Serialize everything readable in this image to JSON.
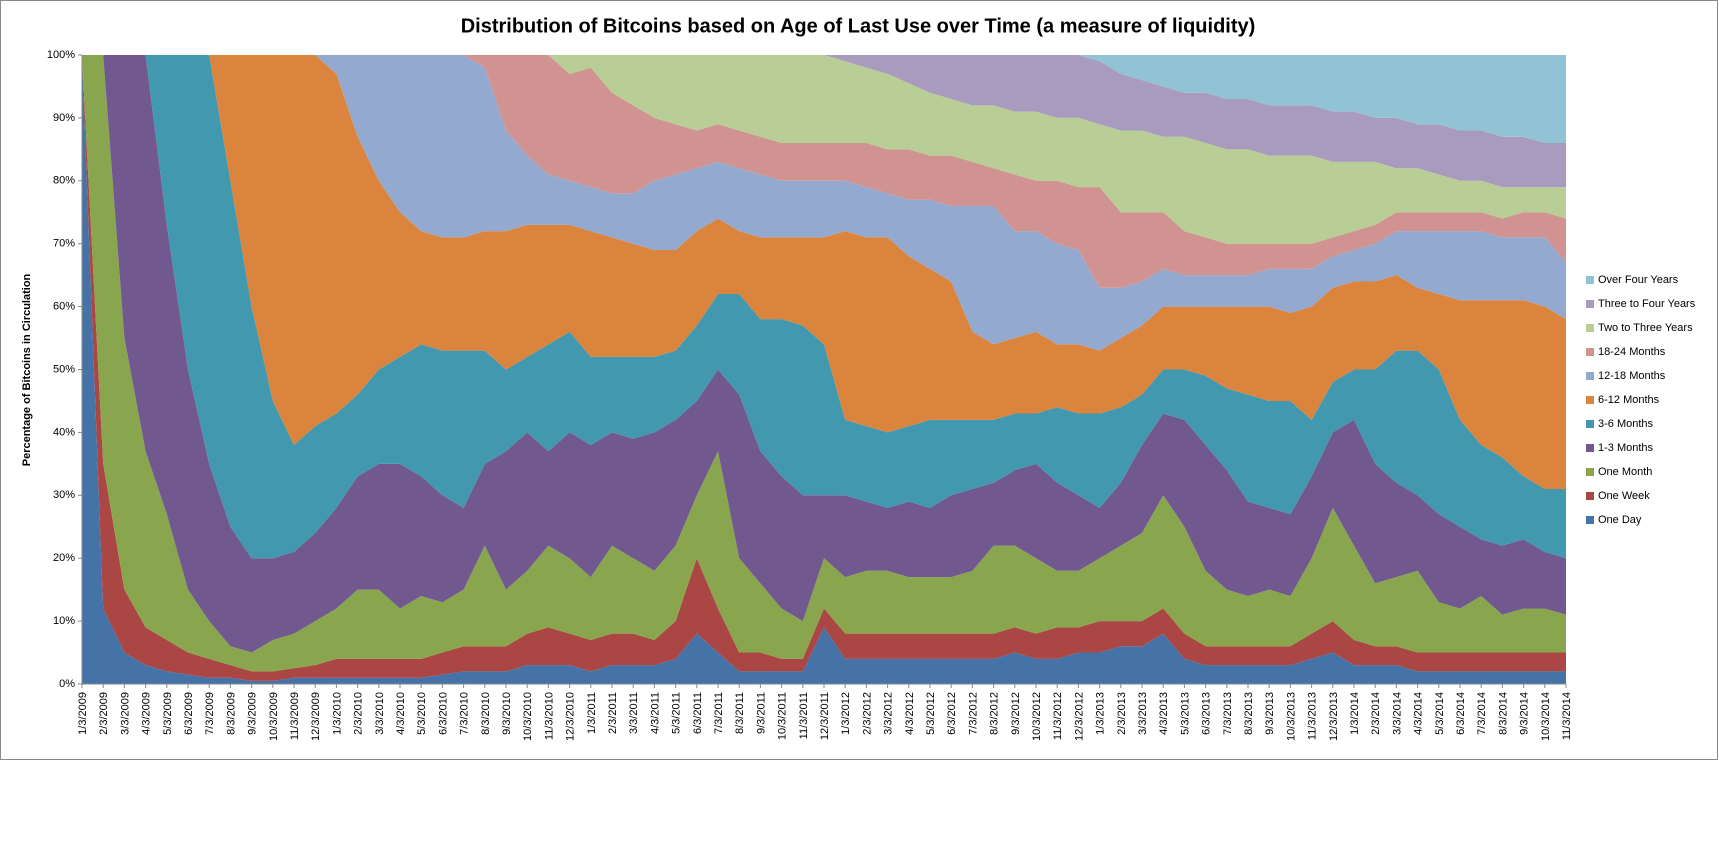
{
  "chart_data": {
    "type": "stacked_area_percent",
    "title": "Distribution of Bitcoins based on Age of Last Use over Time (a measure of liquidity)",
    "y_label": "Percentage of Bitcoins  in Circulation",
    "categories": [
      "1/3/2009",
      "2/3/2009",
      "3/3/2009",
      "4/3/2009",
      "5/3/2009",
      "6/3/2009",
      "7/3/2009",
      "8/3/2009",
      "9/3/2009",
      "10/3/2009",
      "11/3/2009",
      "12/3/2009",
      "1/3/2010",
      "2/3/2010",
      "3/3/2010",
      "4/3/2010",
      "5/3/2010",
      "6/3/2010",
      "7/3/2010",
      "8/3/2010",
      "9/3/2010",
      "10/3/2010",
      "11/3/2010",
      "12/3/2010",
      "1/3/2011",
      "2/3/2011",
      "3/3/2011",
      "4/3/2011",
      "5/3/2011",
      "6/3/2011",
      "7/3/2011",
      "8/3/2011",
      "9/3/2011",
      "10/3/2011",
      "11/3/2011",
      "12/3/2011",
      "1/3/2012",
      "2/3/2012",
      "3/3/2012",
      "4/3/2012",
      "5/3/2012",
      "6/3/2012",
      "7/3/2012",
      "8/3/2012",
      "9/3/2012",
      "10/3/2012",
      "11/3/2012",
      "12/3/2012",
      "1/3/2013",
      "2/3/2013",
      "3/3/2013",
      "4/3/2013",
      "5/3/2013",
      "6/3/2013",
      "7/3/2013",
      "8/3/2013",
      "9/3/2013",
      "10/3/2013",
      "11/3/2013",
      "12/3/2013",
      "1/3/2014",
      "2/3/2014",
      "3/3/2014",
      "4/3/2014",
      "5/3/2014",
      "6/3/2014",
      "7/3/2014",
      "8/3/2014",
      "9/3/2014",
      "10/3/2014",
      "11/3/2014"
    ],
    "series": [
      {
        "name": "One Day",
        "color": "#4572a7",
        "values": [
          100,
          12,
          5,
          3,
          2,
          1.5,
          1,
          1,
          0.5,
          0.5,
          1,
          1,
          1,
          1,
          1,
          1,
          1,
          1.5,
          2,
          2,
          2,
          3,
          3,
          3,
          2,
          3,
          3,
          3,
          4,
          8,
          5,
          2,
          2,
          2,
          2,
          9,
          4,
          4,
          4,
          4,
          4,
          4,
          4,
          4,
          5,
          4,
          4,
          5,
          5,
          6,
          6,
          8,
          4,
          3,
          3,
          3,
          3,
          3,
          4,
          5,
          3,
          3,
          3,
          2,
          2,
          2,
          2,
          2,
          2,
          2,
          2
        ]
      },
      {
        "name": "One Week",
        "color": "#aa4643",
        "values": [
          0,
          23,
          10,
          6,
          5,
          3.5,
          3,
          2,
          1.5,
          1.5,
          1.5,
          2,
          3,
          3,
          3,
          3,
          3,
          3.5,
          4,
          4,
          4,
          5,
          6,
          5,
          5,
          5,
          5,
          4,
          6,
          12,
          7,
          3,
          3,
          2,
          2,
          3,
          4,
          4,
          4,
          4,
          4,
          4,
          4,
          4,
          4,
          4,
          5,
          4,
          5,
          4,
          4,
          4,
          4,
          3,
          3,
          3,
          3,
          3,
          4,
          5,
          4,
          3,
          3,
          3,
          3,
          3,
          3,
          3,
          3,
          3,
          3
        ]
      },
      {
        "name": "One Month",
        "color": "#89a54e",
        "values": [
          0,
          65,
          40,
          28,
          20,
          10,
          6,
          3,
          3,
          5,
          5.5,
          7,
          8,
          11,
          11,
          8,
          10,
          8,
          9,
          16,
          9,
          10,
          13,
          12,
          10,
          14,
          12,
          11,
          12,
          10,
          25,
          15,
          11,
          8,
          6,
          8,
          9,
          10,
          10,
          9,
          9,
          9,
          10,
          14,
          13,
          12,
          9,
          9,
          10,
          12,
          14,
          18,
          17,
          12,
          9,
          8,
          9,
          8,
          12,
          18,
          15,
          10,
          11,
          13,
          8,
          7,
          9,
          6,
          7,
          7,
          6
        ]
      },
      {
        "name": "1-3 Months",
        "color": "#71588f",
        "values": [
          0,
          0,
          45,
          63,
          46,
          35,
          25,
          19,
          15,
          13,
          13,
          14,
          16,
          18,
          20,
          23,
          19,
          17,
          13,
          13,
          22,
          22,
          15,
          20,
          21,
          18,
          19,
          22,
          20,
          15,
          13,
          26,
          21,
          21,
          20,
          10,
          13,
          11,
          10,
          12,
          11,
          13,
          13,
          10,
          12,
          15,
          14,
          12,
          8,
          10,
          14,
          13,
          17,
          20,
          19,
          15,
          13,
          13,
          13,
          12,
          20,
          19,
          15,
          12,
          14,
          13,
          9,
          11,
          11,
          9,
          9
        ]
      },
      {
        "name": "3-6 Months",
        "color": "#4198af",
        "values": [
          0,
          0,
          0,
          0,
          27,
          50,
          65,
          55,
          40,
          25,
          17,
          17,
          15,
          13,
          15,
          17,
          21,
          23,
          25,
          18,
          13,
          12,
          17,
          16,
          14,
          12,
          13,
          12,
          11,
          12,
          12,
          16,
          21,
          25,
          27,
          24,
          12,
          12,
          12,
          12,
          14,
          12,
          11,
          10,
          9,
          8,
          12,
          13,
          15,
          12,
          8,
          7,
          8,
          11,
          13,
          17,
          17,
          18,
          9,
          8,
          8,
          15,
          21,
          23,
          23,
          17,
          15,
          14,
          10,
          10,
          11
        ]
      },
      {
        "name": "6-12 Months",
        "color": "#db843d",
        "values": [
          0,
          0,
          0,
          0,
          0,
          0,
          0,
          20,
          40,
          55,
          62,
          59,
          54,
          41,
          30,
          23,
          18,
          18,
          18,
          19,
          22,
          21,
          19,
          17,
          20,
          19,
          18,
          17,
          16,
          15,
          12,
          10,
          13,
          13,
          14,
          17,
          30,
          30,
          31,
          27,
          24,
          22,
          14,
          12,
          12,
          13,
          10,
          11,
          10,
          11,
          11,
          10,
          10,
          11,
          13,
          14,
          15,
          14,
          18,
          15,
          14,
          14,
          12,
          10,
          12,
          19,
          23,
          25,
          28,
          29,
          27
        ]
      },
      {
        "name": "12-18 Months",
        "color": "#93a9cf",
        "values": [
          0,
          0,
          0,
          0,
          0,
          0,
          0,
          0,
          0,
          0,
          0,
          0,
          3,
          13,
          20,
          25,
          28,
          29,
          29,
          26,
          16,
          11,
          8,
          7,
          7,
          7,
          8,
          11,
          12,
          10,
          9,
          10,
          10,
          9,
          9,
          9,
          8,
          8,
          7,
          9,
          11,
          12,
          20,
          22,
          17,
          16,
          16,
          15,
          10,
          8,
          7,
          6,
          5,
          5,
          5,
          5,
          6,
          7,
          6,
          5,
          5,
          6,
          7,
          9,
          10,
          11,
          11,
          10,
          10,
          11,
          9
        ]
      },
      {
        "name": "18-24 Months",
        "color": "#d19392",
        "values": [
          0,
          0,
          0,
          0,
          0,
          0,
          0,
          0,
          0,
          0,
          0,
          0,
          0,
          0,
          0,
          0,
          0,
          0,
          0,
          2,
          12,
          16,
          19,
          17,
          19,
          16,
          14,
          10,
          8,
          6,
          6,
          6,
          6,
          6,
          6,
          6,
          6,
          7,
          7,
          8,
          7,
          8,
          7,
          6,
          9,
          8,
          10,
          10,
          16,
          12,
          11,
          9,
          7,
          6,
          5,
          5,
          4,
          4,
          4,
          3,
          3,
          3,
          3,
          3,
          3,
          3,
          3,
          3,
          4,
          4,
          7
        ]
      },
      {
        "name": "Two to Three Years",
        "color": "#b9cd96",
        "values": [
          0,
          0,
          0,
          0,
          0,
          0,
          0,
          0,
          0,
          0,
          0,
          0,
          0,
          0,
          0,
          0,
          0,
          0,
          0,
          0,
          0,
          0,
          0,
          3,
          2,
          6,
          8,
          10,
          11,
          12,
          11,
          12,
          13,
          14,
          14,
          14,
          13,
          12,
          12,
          10.5,
          10,
          9,
          9,
          10,
          10,
          11,
          10,
          11,
          10,
          13,
          13,
          12,
          15,
          15,
          15,
          15,
          14,
          14,
          14,
          12,
          11,
          10,
          7,
          7,
          6,
          5,
          5,
          5,
          4,
          4,
          5
        ]
      },
      {
        "name": "Three to Four Years",
        "color": "#a99bbd",
        "values": [
          0,
          0,
          0,
          0,
          0,
          0,
          0,
          0,
          0,
          0,
          0,
          0,
          0,
          0,
          0,
          0,
          0,
          0,
          0,
          0,
          0,
          0,
          0,
          0,
          0,
          0,
          0,
          0,
          0,
          0,
          0,
          0,
          0,
          0,
          0,
          0,
          1,
          2,
          3,
          4.5,
          6,
          7,
          8,
          8,
          9,
          9,
          10,
          10,
          10,
          9,
          8,
          8,
          7,
          8,
          8,
          8,
          8,
          8,
          8,
          8,
          8,
          7,
          8,
          7,
          8,
          8,
          8,
          8,
          8,
          7,
          7
        ]
      },
      {
        "name": "Over Four Years",
        "color": "#92c3d4",
        "values": [
          0,
          0,
          0,
          0,
          0,
          0,
          0,
          0,
          0,
          0,
          0,
          0,
          0,
          0,
          0,
          0,
          0,
          0,
          0,
          0,
          0,
          0,
          0,
          0,
          0,
          0,
          0,
          0,
          0,
          0,
          0,
          0,
          0,
          0,
          0,
          0,
          0,
          0,
          0,
          0,
          0,
          0,
          0,
          0,
          0,
          0,
          0,
          0,
          1,
          3,
          4,
          5,
          6,
          6,
          7,
          7,
          8,
          8,
          8,
          9,
          9,
          10,
          10,
          11,
          11,
          12,
          12,
          13,
          13,
          14,
          14
        ]
      }
    ],
    "ylim": [
      0,
      100
    ],
    "yticks": [
      {
        "value": 0,
        "label": "0%"
      },
      {
        "value": 10,
        "label": "10%"
      },
      {
        "value": 20,
        "label": "20%"
      },
      {
        "value": 30,
        "label": "30%"
      },
      {
        "value": 40,
        "label": "40%"
      },
      {
        "value": 50,
        "label": "50%"
      },
      {
        "value": 60,
        "label": "60%"
      },
      {
        "value": 70,
        "label": "70%"
      },
      {
        "value": 80,
        "label": "80%"
      },
      {
        "value": 90,
        "label": "90%"
      },
      {
        "value": 100,
        "label": "100%"
      }
    ],
    "legend": "right"
  }
}
